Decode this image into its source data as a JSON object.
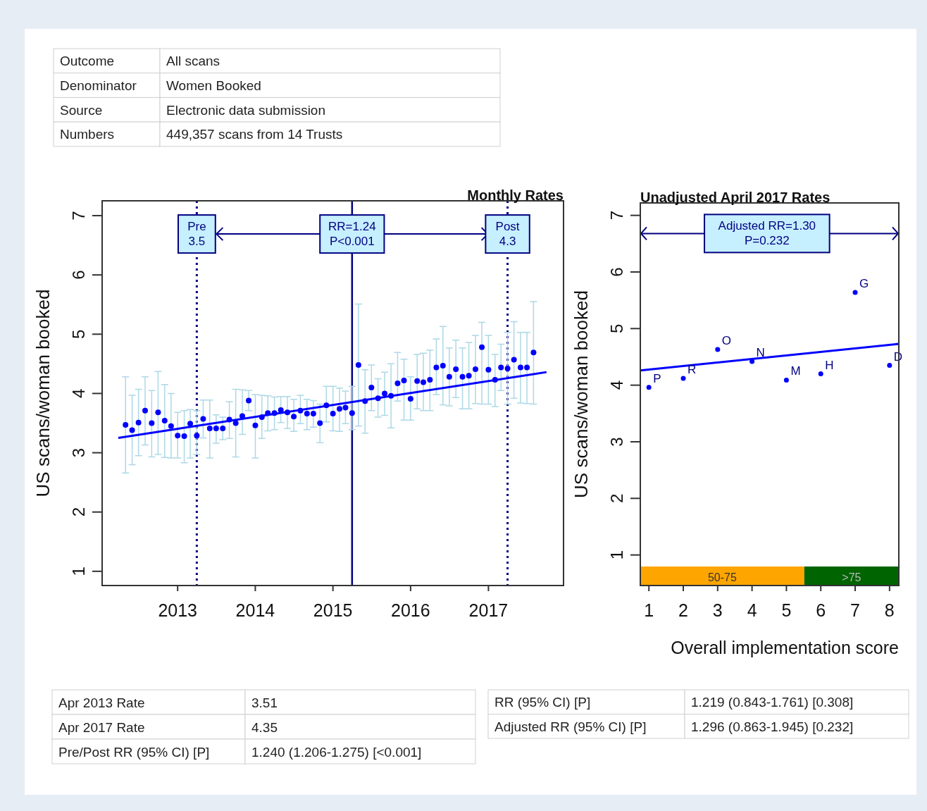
{
  "chart_data": [
    {
      "type": "other",
      "annotations": [
        "Outcome",
        "All scans",
        "Denominator",
        "Women Booked",
        "Source",
        "Electronic data submission",
        "Numbers",
        "449,357 scans from 14 Trusts"
      ]
    },
    {
      "type": "scatter",
      "title": "Monthly Rates",
      "ylabel": "US scans/woman booked",
      "xlim": [
        "2012-01-12",
        "2017-12-20"
      ],
      "xticks": [
        "2013",
        "2014",
        "2015",
        "2016",
        "2017"
      ],
      "ylim": [
        0.76,
        7.25
      ],
      "yticks": [
        1,
        2,
        3,
        4,
        5,
        6,
        7
      ],
      "grid": false,
      "series": [
        {
          "type": "scatter",
          "marker": "circle",
          "color": "#0000ff",
          "x": [
            "2012-05",
            "2012-06",
            "2012-07",
            "2012-08",
            "2012-09",
            "2012-10",
            "2012-11",
            "2012-12",
            "2013-01",
            "2013-02",
            "2013-03",
            "2013-04",
            "2013-05",
            "2013-06",
            "2013-07",
            "2013-08",
            "2013-09",
            "2013-10",
            "2013-11",
            "2013-12",
            "2014-01",
            "2014-02",
            "2014-03",
            "2014-04",
            "2014-05",
            "2014-06",
            "2014-07",
            "2014-08",
            "2014-09",
            "2014-10",
            "2014-11",
            "2014-12",
            "2015-01",
            "2015-02",
            "2015-03",
            "2015-04",
            "2015-05",
            "2015-06",
            "2015-07",
            "2015-08",
            "2015-09",
            "2015-10",
            "2015-11",
            "2015-12",
            "2016-01",
            "2016-02",
            "2016-03",
            "2016-04",
            "2016-05",
            "2016-06",
            "2016-07",
            "2016-08",
            "2016-09",
            "2016-10",
            "2016-11",
            "2016-12",
            "2017-01",
            "2017-02",
            "2017-03",
            "2017-04",
            "2017-05",
            "2017-06",
            "2017-07",
            "2017-08"
          ],
          "values": [
            3.47,
            3.38,
            3.51,
            3.71,
            3.5,
            3.68,
            3.54,
            3.45,
            3.29,
            3.28,
            3.49,
            3.29,
            3.57,
            3.41,
            3.41,
            3.41,
            3.56,
            3.5,
            3.62,
            3.88,
            3.46,
            3.6,
            3.67,
            3.67,
            3.72,
            3.68,
            3.61,
            3.71,
            3.66,
            3.66,
            3.5,
            3.8,
            3.66,
            3.74,
            3.76,
            3.67,
            4.48,
            3.87,
            4.1,
            3.92,
            4.0,
            3.96,
            4.17,
            4.22,
            3.91,
            4.21,
            4.19,
            4.23,
            4.44,
            4.47,
            4.28,
            4.41,
            4.28,
            4.3,
            4.41,
            4.78,
            4.4,
            4.23,
            4.44,
            4.42,
            4.57,
            4.44,
            4.44,
            4.69
          ],
          "errors": [
            [
              2.66,
              4.28
            ],
            [
              2.8,
              3.97
            ],
            [
              2.95,
              4.07
            ],
            [
              3.13,
              4.28
            ],
            [
              2.93,
              4.05
            ],
            [
              2.97,
              4.37
            ],
            [
              2.92,
              4.15
            ],
            [
              2.91,
              4.0
            ],
            [
              2.91,
              3.68
            ],
            [
              2.83,
              3.71
            ],
            [
              2.91,
              3.73
            ],
            [
              2.97,
              3.71
            ],
            [
              3.25,
              3.89
            ],
            [
              2.91,
              3.89
            ],
            [
              3.16,
              3.64
            ],
            [
              3.22,
              3.6
            ],
            [
              3.24,
              3.86
            ],
            [
              2.93,
              4.07
            ],
            [
              3.31,
              4.06
            ],
            [
              3.71,
              4.05
            ],
            [
              2.91,
              3.98
            ],
            [
              3.24,
              3.97
            ],
            [
              3.37,
              3.96
            ],
            [
              3.39,
              3.94
            ],
            [
              3.51,
              3.95
            ],
            [
              3.41,
              3.95
            ],
            [
              3.36,
              3.9
            ],
            [
              3.49,
              3.97
            ],
            [
              3.39,
              3.9
            ],
            [
              3.43,
              3.88
            ],
            [
              3.17,
              3.82
            ],
            [
              3.52,
              4.12
            ],
            [
              3.37,
              4.12
            ],
            [
              3.36,
              4.09
            ],
            [
              3.49,
              4.04
            ],
            [
              3.39,
              4.12
            ],
            [
              3.45,
              5.51
            ],
            [
              3.33,
              4.4
            ],
            [
              3.71,
              4.48
            ],
            [
              3.6,
              4.25
            ],
            [
              3.63,
              4.36
            ],
            [
              3.42,
              4.5
            ],
            [
              3.87,
              4.69
            ],
            [
              3.55,
              4.58
            ],
            [
              3.55,
              4.28
            ],
            [
              3.74,
              4.66
            ],
            [
              3.71,
              4.68
            ],
            [
              3.71,
              4.73
            ],
            [
              3.98,
              4.92
            ],
            [
              3.81,
              5.13
            ],
            [
              3.79,
              4.77
            ],
            [
              3.93,
              4.9
            ],
            [
              3.74,
              4.77
            ],
            [
              3.74,
              4.86
            ],
            [
              3.83,
              4.98
            ],
            [
              3.82,
              5.2
            ],
            [
              3.82,
              4.98
            ],
            [
              3.78,
              4.66
            ],
            [
              4.05,
              4.83
            ],
            [
              3.82,
              5.03
            ],
            [
              3.92,
              5.21
            ],
            [
              3.84,
              5.03
            ],
            [
              3.83,
              5.03
            ],
            [
              3.82,
              5.55
            ]
          ]
        },
        {
          "type": "line",
          "color": "#0000ff",
          "x": [
            "2012-03-28",
            "2017-10-01"
          ],
          "values": [
            3.25,
            4.36
          ]
        }
      ],
      "ref_lines": [
        {
          "axis": "x",
          "value": "2013-04-01",
          "color": "#000080",
          "line_style": "dotted"
        },
        {
          "axis": "x",
          "value": "2015-04-01",
          "color": "#000080",
          "line_style": "solid"
        },
        {
          "axis": "x",
          "value": "2017-04-01",
          "color": "#000080",
          "line_style": "dotted"
        }
      ],
      "annotations": [
        {
          "text": "Pre\n3.5",
          "x": "2013-04-01",
          "y": 6.69
        },
        {
          "text": "RR=1.24\nP<0.001",
          "x": "2015-04-01",
          "y": 6.69
        },
        {
          "text": "Post\n4.3",
          "x": "2017-04-01",
          "y": 6.69
        }
      ]
    },
    {
      "type": "scatter",
      "title": "Unadjusted April 2017 Rates",
      "xlabel": "Overall implementation score",
      "ylabel": "US scans/woman booked",
      "xlim": [
        0.75,
        8.27
      ],
      "xticks": [
        1,
        2,
        3,
        4,
        5,
        6,
        7,
        8
      ],
      "ylim": [
        0.46,
        7.22
      ],
      "yticks": [
        1,
        2,
        3,
        4,
        5,
        6,
        7
      ],
      "grid": false,
      "series": [
        {
          "type": "scatter",
          "marker": "circle",
          "color": "#0000ff",
          "x": [
            1,
            2,
            3,
            4,
            5,
            6,
            7,
            8
          ],
          "values": [
            3.96,
            4.12,
            4.63,
            4.42,
            4.09,
            4.2,
            5.64,
            4.35
          ]
        },
        {
          "type": "line",
          "color": "#0000ff",
          "x": [
            0.75,
            8.27
          ],
          "values": [
            4.26,
            4.73
          ]
        }
      ],
      "ref_lines": [
        {
          "axis": "y",
          "value": 6.68,
          "color": "#000080",
          "line_style": "solid"
        }
      ],
      "bands": [
        {
          "axis": "x",
          "from": 0.75,
          "to": 5.52,
          "label": "50-75",
          "color": "#ffa500"
        },
        {
          "axis": "x",
          "from": 5.52,
          "to": 8.27,
          "label": ">75",
          "color": "#006400"
        }
      ],
      "annotations": [
        {
          "text": "P",
          "x": 1,
          "y": 3.96
        },
        {
          "text": "R",
          "x": 2,
          "y": 4.12
        },
        {
          "text": "O",
          "x": 3,
          "y": 4.63
        },
        {
          "text": "N",
          "x": 4,
          "y": 4.42
        },
        {
          "text": "M",
          "x": 5,
          "y": 4.09
        },
        {
          "text": "H",
          "x": 6,
          "y": 4.2
        },
        {
          "text": "G",
          "x": 7,
          "y": 5.64
        },
        {
          "text": "D",
          "x": 8,
          "y": 4.35
        },
        "Adjusted RR=1.30\nP=0.232"
      ]
    },
    {
      "type": "other",
      "annotations": [
        "Apr 2013 Rate",
        "3.51",
        "Apr 2017 Rate",
        "4.35",
        "Pre/Post RR (95% CI) [P]",
        "1.240 (1.206-1.275) [<0.001]"
      ]
    },
    {
      "type": "other",
      "annotations": [
        "RR (95% CI) [P]",
        "1.219 (0.843-1.761) [0.308]",
        "Adjusted  RR (95% CI) [P]",
        "1.296 (0.863-1.945) [0.232]"
      ]
    }
  ]
}
